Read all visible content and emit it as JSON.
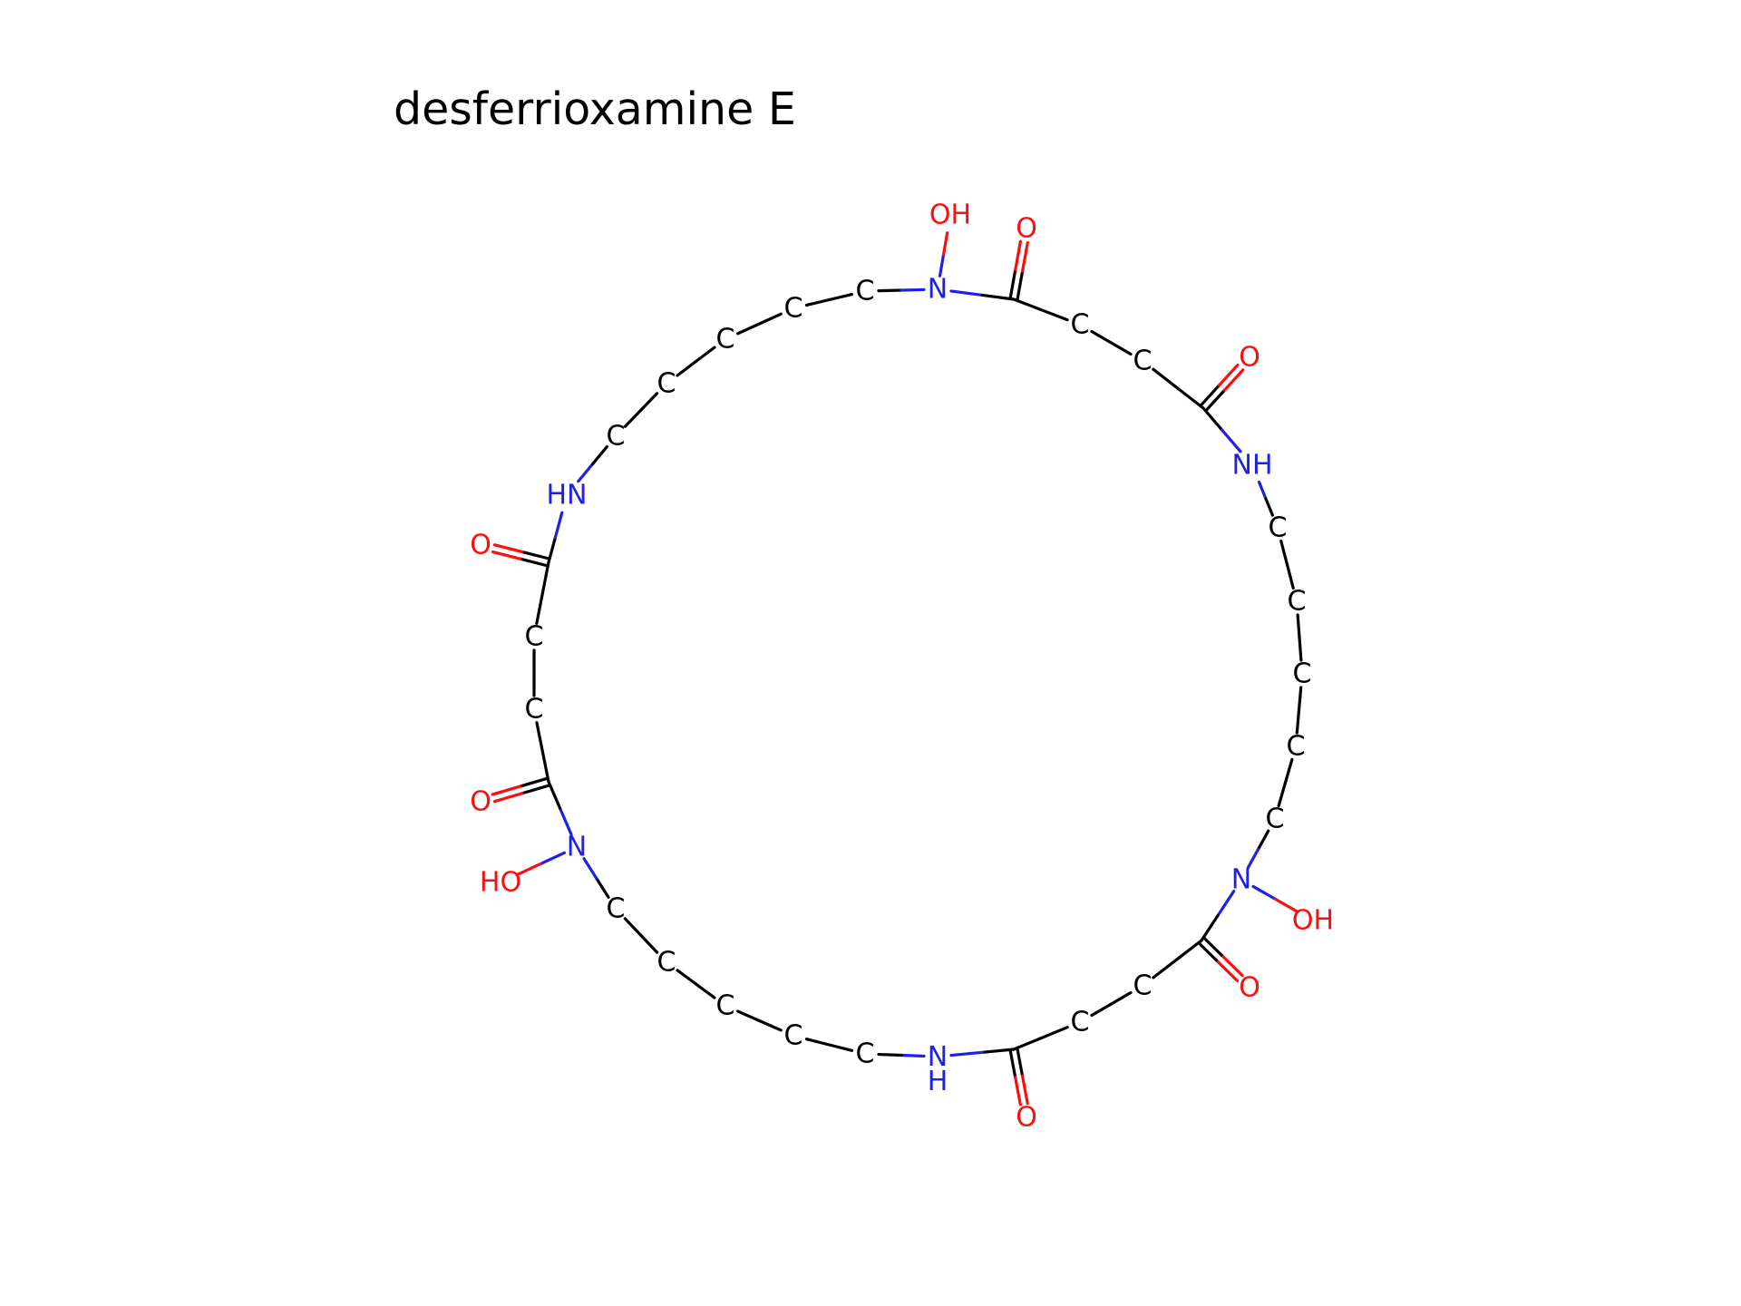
{
  "title": "desferrioxamine E",
  "colors": {
    "carbon": "#000000",
    "nitrogen": "#1f1fe8",
    "oxygen": "#ff0d0d",
    "bond": "#000000"
  },
  "atoms": [
    {
      "id": "c1",
      "label": "C",
      "el": "C"
    },
    {
      "id": "c2",
      "label": "C",
      "el": "C"
    },
    {
      "id": "c3",
      "label": "C",
      "el": "C"
    },
    {
      "id": "c4",
      "label": "C",
      "el": "C"
    },
    {
      "id": "c5",
      "label": "C",
      "el": "C"
    },
    {
      "id": "n1",
      "label": "N",
      "el": "N"
    },
    {
      "id": "oh1",
      "label": "OH",
      "el": "O"
    },
    {
      "id": "c6",
      "label": "",
      "el": "C"
    },
    {
      "id": "o1",
      "label": "O",
      "el": "O"
    },
    {
      "id": "c7",
      "label": "C",
      "el": "C"
    },
    {
      "id": "c8",
      "label": "C",
      "el": "C"
    },
    {
      "id": "c9",
      "label": "",
      "el": "C"
    },
    {
      "id": "o2",
      "label": "O",
      "el": "O"
    },
    {
      "id": "nh1",
      "label": "NH",
      "el": "N"
    },
    {
      "id": "c10",
      "label": "C",
      "el": "C"
    },
    {
      "id": "c11",
      "label": "C",
      "el": "C"
    },
    {
      "id": "c12",
      "label": "C",
      "el": "C"
    },
    {
      "id": "c13",
      "label": "C",
      "el": "C"
    },
    {
      "id": "c14",
      "label": "C",
      "el": "C"
    },
    {
      "id": "n2",
      "label": "N",
      "el": "N"
    },
    {
      "id": "oh2",
      "label": "OH",
      "el": "O"
    },
    {
      "id": "c15",
      "label": "",
      "el": "C"
    },
    {
      "id": "o3",
      "label": "O",
      "el": "O"
    },
    {
      "id": "c16",
      "label": "C",
      "el": "C"
    },
    {
      "id": "c17",
      "label": "C",
      "el": "C"
    },
    {
      "id": "c18",
      "label": "",
      "el": "C"
    },
    {
      "id": "o4",
      "label": "O",
      "el": "O"
    },
    {
      "id": "nh2",
      "label": "NH",
      "el": "N",
      "stacked": true
    },
    {
      "id": "c19",
      "label": "C",
      "el": "C"
    },
    {
      "id": "c20",
      "label": "C",
      "el": "C"
    },
    {
      "id": "c21",
      "label": "C",
      "el": "C"
    },
    {
      "id": "c22",
      "label": "C",
      "el": "C"
    },
    {
      "id": "c23",
      "label": "C",
      "el": "C"
    },
    {
      "id": "n3",
      "label": "N",
      "el": "N"
    },
    {
      "id": "oh3",
      "label": "HO",
      "el": "O"
    },
    {
      "id": "c24",
      "label": "",
      "el": "C"
    },
    {
      "id": "o5",
      "label": "O",
      "el": "O"
    },
    {
      "id": "c25",
      "label": "C",
      "el": "C"
    },
    {
      "id": "c26",
      "label": "C",
      "el": "C"
    },
    {
      "id": "c27",
      "label": "",
      "el": "C"
    },
    {
      "id": "o6",
      "label": "O",
      "el": "O"
    },
    {
      "id": "nh3",
      "label": "HN",
      "el": "N"
    }
  ],
  "bonds": [
    [
      "c1",
      "c2",
      1
    ],
    [
      "c2",
      "c3",
      1
    ],
    [
      "c3",
      "c4",
      1
    ],
    [
      "c4",
      "c5",
      1
    ],
    [
      "c5",
      "n1",
      1
    ],
    [
      "n1",
      "oh1",
      1
    ],
    [
      "n1",
      "c6",
      1
    ],
    [
      "c6",
      "o1",
      2
    ],
    [
      "c6",
      "c7",
      1
    ],
    [
      "c7",
      "c8",
      1
    ],
    [
      "c8",
      "c9",
      1
    ],
    [
      "c9",
      "o2",
      2
    ],
    [
      "c9",
      "nh1",
      1
    ],
    [
      "nh1",
      "c10",
      1
    ],
    [
      "c10",
      "c11",
      1
    ],
    [
      "c11",
      "c12",
      1
    ],
    [
      "c12",
      "c13",
      1
    ],
    [
      "c13",
      "c14",
      1
    ],
    [
      "c14",
      "n2",
      1
    ],
    [
      "n2",
      "oh2",
      1
    ],
    [
      "n2",
      "c15",
      1
    ],
    [
      "c15",
      "o3",
      2
    ],
    [
      "c15",
      "c16",
      1
    ],
    [
      "c16",
      "c17",
      1
    ],
    [
      "c17",
      "c18",
      1
    ],
    [
      "c18",
      "o4",
      2
    ],
    [
      "c18",
      "nh2",
      1
    ],
    [
      "nh2",
      "c19",
      1
    ],
    [
      "c19",
      "c20",
      1
    ],
    [
      "c20",
      "c21",
      1
    ],
    [
      "c21",
      "c22",
      1
    ],
    [
      "c22",
      "c23",
      1
    ],
    [
      "c23",
      "n3",
      1
    ],
    [
      "n3",
      "oh3",
      1
    ],
    [
      "n3",
      "c24",
      1
    ],
    [
      "c24",
      "o5",
      2
    ],
    [
      "c24",
      "c25",
      1
    ],
    [
      "c25",
      "c26",
      1
    ],
    [
      "c26",
      "c27",
      1
    ],
    [
      "c27",
      "o6",
      2
    ],
    [
      "c27",
      "nh3",
      1
    ],
    [
      "nh3",
      "c1",
      1
    ]
  ]
}
